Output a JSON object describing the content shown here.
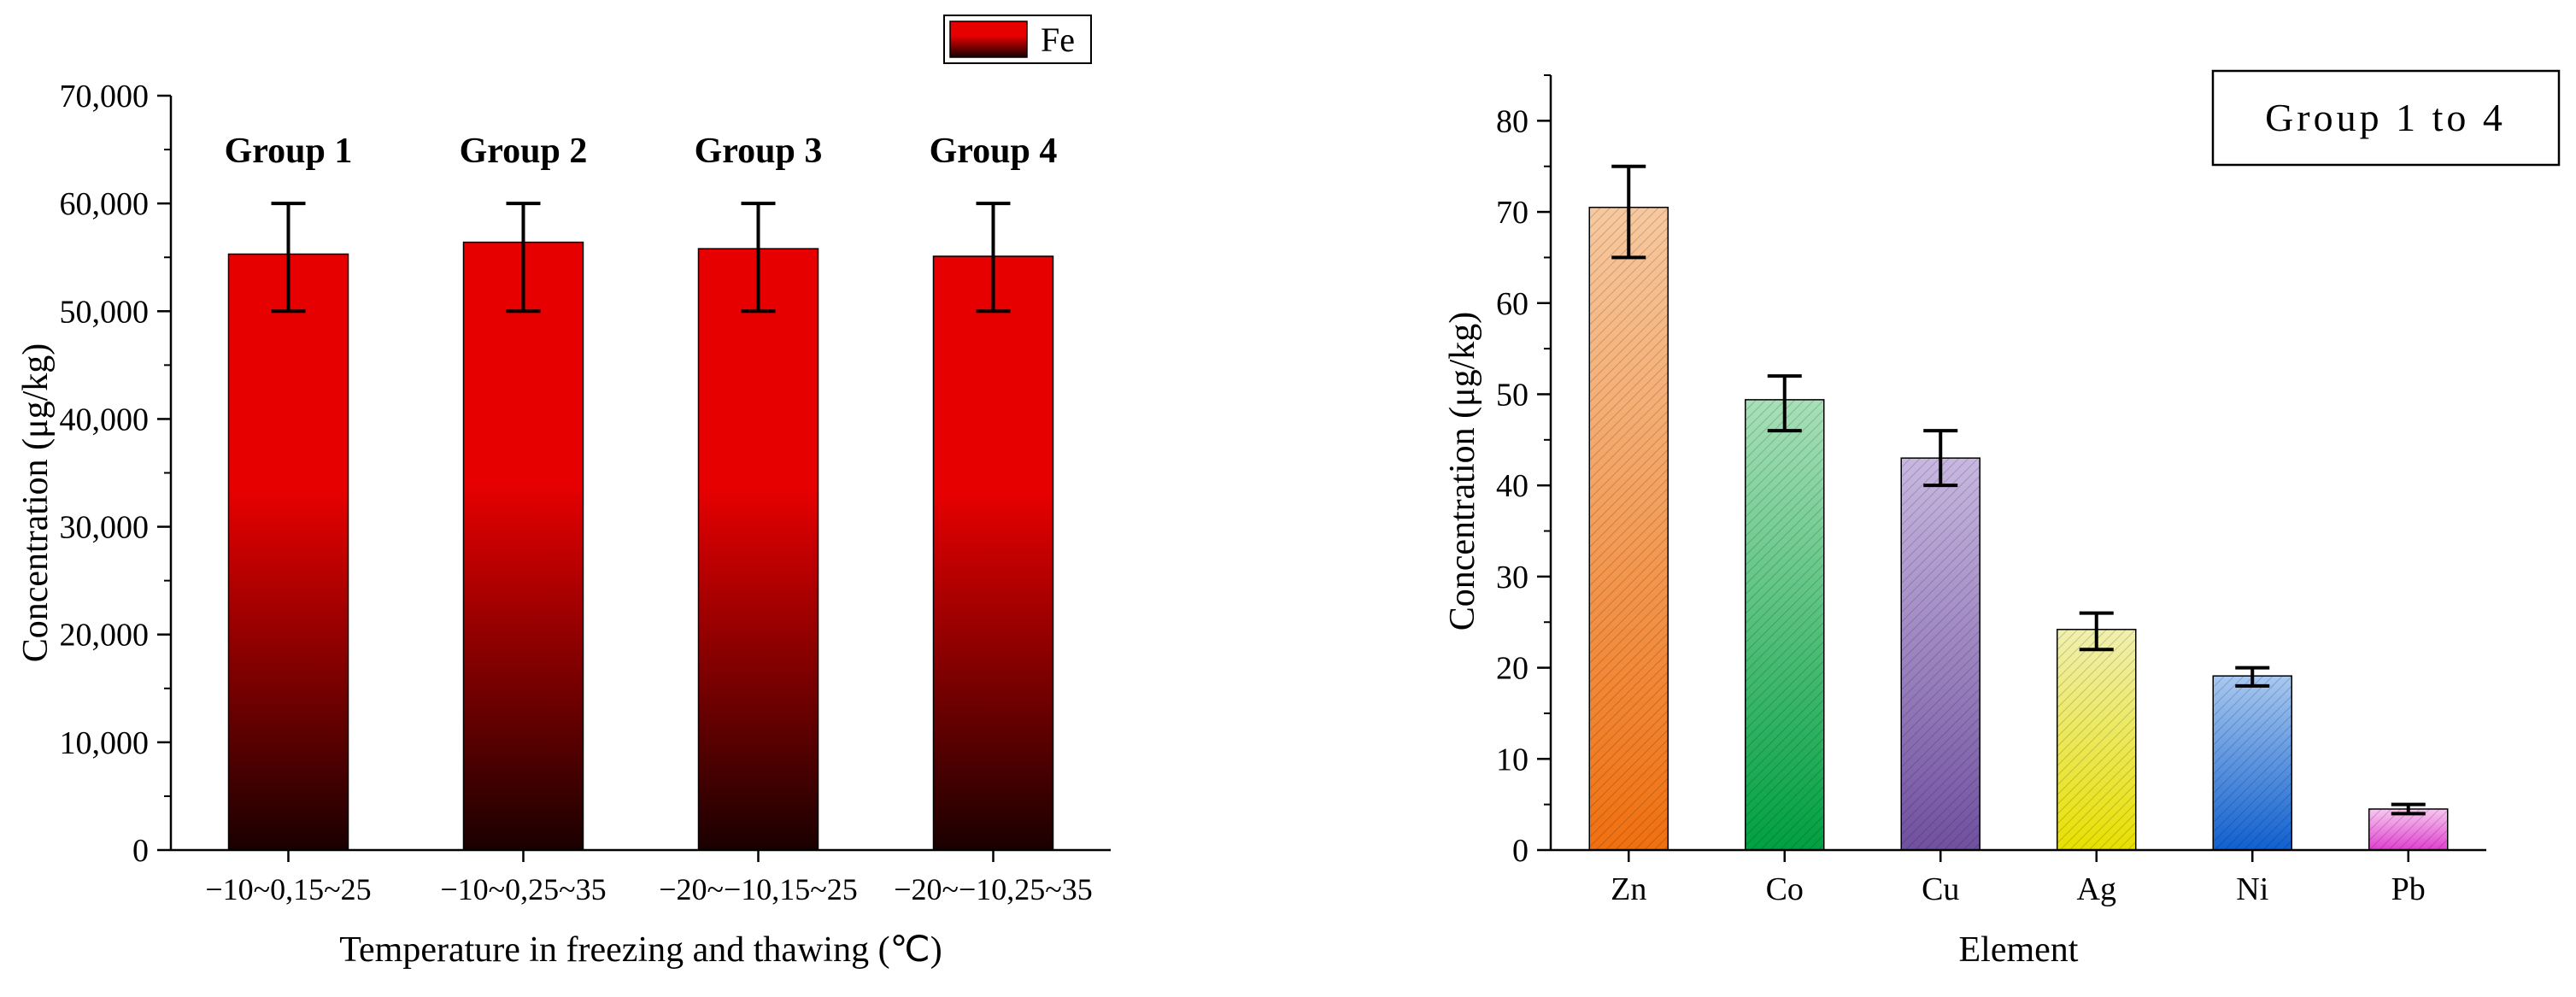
{
  "chart_data": [
    {
      "type": "bar",
      "title": "",
      "xlabel": "Temperature in freezing and thawing (℃)",
      "ylabel": "Concentration (μg/kg)",
      "categories": [
        "−10~0,15~25",
        "−10~0,25~35",
        "−20~−10,15~25",
        "−20~−10,25~35"
      ],
      "group_labels": [
        "Group 1",
        "Group 2",
        "Group 3",
        "Group 4"
      ],
      "series": [
        {
          "name": "Fe",
          "values": [
            55300,
            56400,
            55800,
            55100
          ],
          "error_lower": [
            50000,
            50000,
            50000,
            50000
          ],
          "error_upper": [
            60000,
            60000,
            60000,
            60000
          ]
        }
      ],
      "ylim": [
        0,
        70000
      ],
      "yticks": [
        0,
        10000,
        20000,
        30000,
        40000,
        50000,
        60000,
        70000
      ],
      "ytick_labels": [
        "0",
        "10,000",
        "20,000",
        "30,000",
        "40,000",
        "50,000",
        "60,000",
        "70,000"
      ],
      "legend": {
        "label": "Fe",
        "position": "top-right"
      },
      "colors": {
        "top": "#e60000",
        "bottom": "#1a0000"
      }
    },
    {
      "type": "bar",
      "title": "",
      "xlabel": "Element",
      "ylabel": "Concentration (μg/kg)",
      "categories": [
        "Zn",
        "Co",
        "Cu",
        "Ag",
        "Ni",
        "Pb"
      ],
      "values": [
        70.5,
        49.4,
        43.0,
        24.2,
        19.1,
        4.5
      ],
      "error_lower": [
        65,
        46,
        40,
        22,
        18,
        4
      ],
      "error_upper": [
        75,
        52,
        46,
        26,
        20,
        5
      ],
      "ylim": [
        0,
        85
      ],
      "yticks": [
        0,
        10,
        20,
        30,
        40,
        50,
        60,
        70,
        80
      ],
      "ytick_labels": [
        "0",
        "10",
        "20",
        "30",
        "40",
        "50",
        "60",
        "70",
        "80"
      ],
      "annotation": "Group 1 to 4",
      "colors": [
        {
          "top": "#f7c9a0",
          "bottom": "#f07010"
        },
        {
          "top": "#a8e0b8",
          "bottom": "#00a040"
        },
        {
          "top": "#c8b8e0",
          "bottom": "#7050a0"
        },
        {
          "top": "#f0f0b0",
          "bottom": "#e8e000"
        },
        {
          "top": "#a8c8f0",
          "bottom": "#1060d0"
        },
        {
          "top": "#f8c8f0",
          "bottom": "#e040d0"
        }
      ]
    }
  ]
}
